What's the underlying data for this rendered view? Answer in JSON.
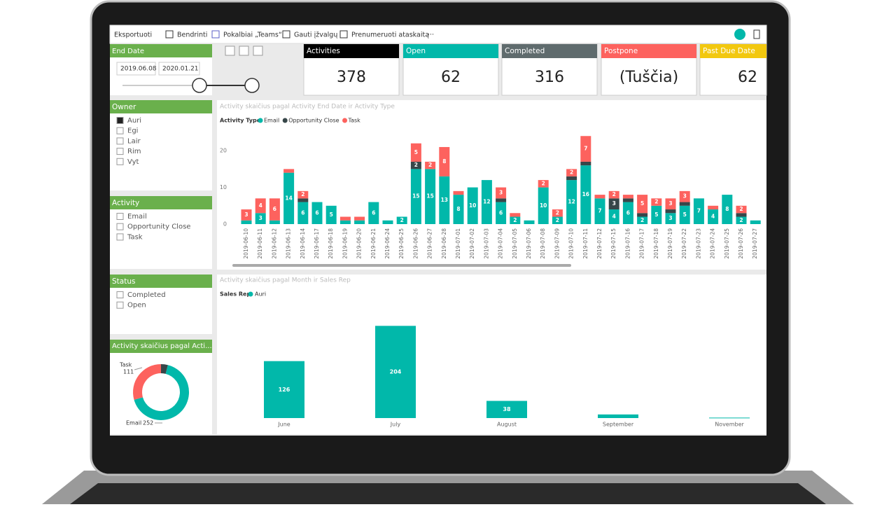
{
  "toolbar": {
    "items": [
      "Eksportuoti",
      "Bendrinti",
      "Pokalbiai „Teams“",
      "Gauti įžvalgų",
      "Prenumeruoti ataskaitą",
      "···"
    ]
  },
  "date_slicer": {
    "title": "End Date",
    "start": "2019.06.08",
    "end": "2020.01.21"
  },
  "owner_slicer": {
    "title": "Owner",
    "items": [
      "Auri",
      "Egi",
      "Lair",
      "Rim",
      "Vyt"
    ],
    "selected_index": 0
  },
  "activity_slicer": {
    "title": "Activity",
    "items": [
      "Email",
      "Opportunity Close",
      "Task"
    ]
  },
  "status_slicer": {
    "title": "Status",
    "items": [
      "Completed",
      "Open"
    ]
  },
  "cards": [
    {
      "title": "Activities",
      "value": 378,
      "color": "#000000"
    },
    {
      "title": "Open",
      "value": 62,
      "color": "#01B8AA"
    },
    {
      "title": "Completed",
      "value": 316,
      "color": "#5F6B6D"
    },
    {
      "title": "Postpone",
      "value": "(Tuščia)",
      "color": "#FD625E"
    },
    {
      "title": "Past Due Date",
      "value": 62,
      "color": "#F2C80F"
    }
  ],
  "chart_data": [
    {
      "type": "bar",
      "stacked": true,
      "title": "Activity skaičius pagal Activity End Date ir Activity Type",
      "legend_title": "Activity Type",
      "categories": [
        "2019-06-10",
        "2019-06-11",
        "2019-06-12",
        "2019-06-13",
        "2019-06-14",
        "2019-06-17",
        "2019-06-18",
        "2019-06-19",
        "2019-06-20",
        "2019-06-21",
        "2019-06-24",
        "2019-06-25",
        "2019-06-26",
        "2019-06-27",
        "2019-06-28",
        "2019-07-01",
        "2019-07-02",
        "2019-07-03",
        "2019-07-04",
        "2019-07-05",
        "2019-07-06",
        "2019-07-08",
        "2019-07-09",
        "2019-07-10",
        "2019-07-11",
        "2019-07-12",
        "2019-07-15",
        "2019-07-16",
        "2019-07-17",
        "2019-07-18",
        "2019-07-19",
        "2019-07-22",
        "2019-07-23",
        "2019-07-24",
        "2019-07-25",
        "2019-07-26",
        "2019-07-27"
      ],
      "series": [
        {
          "name": "Email",
          "color": "#01B8AA",
          "values": [
            1,
            3,
            1,
            14,
            6,
            6,
            5,
            1,
            1,
            6,
            1,
            2,
            15,
            15,
            13,
            8,
            10,
            12,
            6,
            2,
            1,
            10,
            2,
            12,
            16,
            7,
            4,
            6,
            2,
            5,
            3,
            5,
            7,
            4,
            8,
            2,
            1
          ]
        },
        {
          "name": "Opportunity Close",
          "color": "#374649",
          "values": [
            0,
            0,
            0,
            0,
            1,
            0,
            0,
            0,
            0,
            0,
            0,
            0,
            2,
            0,
            0,
            0,
            0,
            0,
            1,
            0,
            0,
            0,
            0,
            1,
            1,
            0,
            3,
            1,
            1,
            0,
            1,
            1,
            0,
            0,
            0,
            1,
            0
          ]
        },
        {
          "name": "Task",
          "color": "#FD625E",
          "values": [
            3,
            4,
            6,
            1,
            2,
            0,
            0,
            1,
            1,
            0,
            0,
            0,
            5,
            2,
            8,
            1,
            0,
            0,
            3,
            1,
            0,
            2,
            2,
            2,
            7,
            1,
            2,
            1,
            5,
            2,
            3,
            3,
            0,
            1,
            0,
            2,
            0
          ]
        }
      ],
      "ylim": [
        0,
        25
      ],
      "yticks": [
        0,
        10,
        20
      ],
      "grid": false
    },
    {
      "type": "bar",
      "title": "Activity skaičius pagal Month ir Sales Rep",
      "legend_title": "Sales Rep",
      "categories": [
        "June",
        "July",
        "August",
        "September",
        "November"
      ],
      "series": [
        {
          "name": "Auri",
          "color": "#01B8AA",
          "values": [
            126,
            204,
            38,
            8,
            1
          ]
        }
      ],
      "ylim": [
        0,
        220
      ]
    },
    {
      "type": "pie",
      "donut": true,
      "title": "Activity skaičius pagal Acti...",
      "categories": [
        null,
        "Email",
        "Task"
      ],
      "values": [
        15,
        252,
        111
      ],
      "colors": [
        "#374649",
        "#01B8AA",
        "#FD625E"
      ]
    }
  ]
}
